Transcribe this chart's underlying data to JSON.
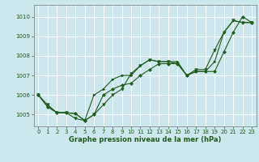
{
  "title": "Graphe pression niveau de la mer (hPa)",
  "bg_color": "#cce8ec",
  "grid_color": "#ffffff",
  "line_color": "#1e5c1e",
  "xlim": [
    -0.5,
    23.5
  ],
  "ylim": [
    1004.4,
    1010.6
  ],
  "yticks": [
    1005,
    1006,
    1007,
    1008,
    1009,
    1010
  ],
  "xticks": [
    0,
    1,
    2,
    3,
    4,
    5,
    6,
    7,
    8,
    9,
    10,
    11,
    12,
    13,
    14,
    15,
    16,
    17,
    18,
    19,
    20,
    21,
    22,
    23
  ],
  "series1": [
    1006.0,
    1005.5,
    1005.1,
    1005.1,
    1004.8,
    1004.7,
    1005.0,
    1005.5,
    1006.0,
    1006.3,
    1007.1,
    1007.5,
    1007.8,
    1007.7,
    1007.7,
    1007.6,
    1007.0,
    1007.3,
    1007.3,
    1008.3,
    1009.2,
    1009.8,
    1009.7,
    1009.7
  ],
  "series2": [
    1006.0,
    1005.4,
    1005.1,
    1005.1,
    1005.05,
    1004.7,
    1005.0,
    1006.0,
    1006.3,
    1006.5,
    1006.6,
    1007.0,
    1007.3,
    1007.6,
    1007.6,
    1007.6,
    1007.0,
    1007.2,
    1007.2,
    1007.2,
    1008.2,
    1009.2,
    1010.0,
    1009.7
  ],
  "series3": [
    1006.0,
    1005.4,
    1005.1,
    1005.1,
    1005.05,
    1004.7,
    1006.0,
    1006.3,
    1006.8,
    1007.0,
    1007.0,
    1007.5,
    1007.8,
    1007.7,
    1007.7,
    1007.7,
    1007.0,
    1007.2,
    1007.2,
    1007.7,
    1009.2,
    1009.8,
    1009.7,
    1009.7
  ],
  "marker1": "v",
  "marker2": "D",
  "marker3": ">",
  "lw": 0.8,
  "ms1": 2.5,
  "ms2": 2.0,
  "ms3": 2.0,
  "tick_fontsize": 5.0,
  "label_fontsize": 6.0
}
